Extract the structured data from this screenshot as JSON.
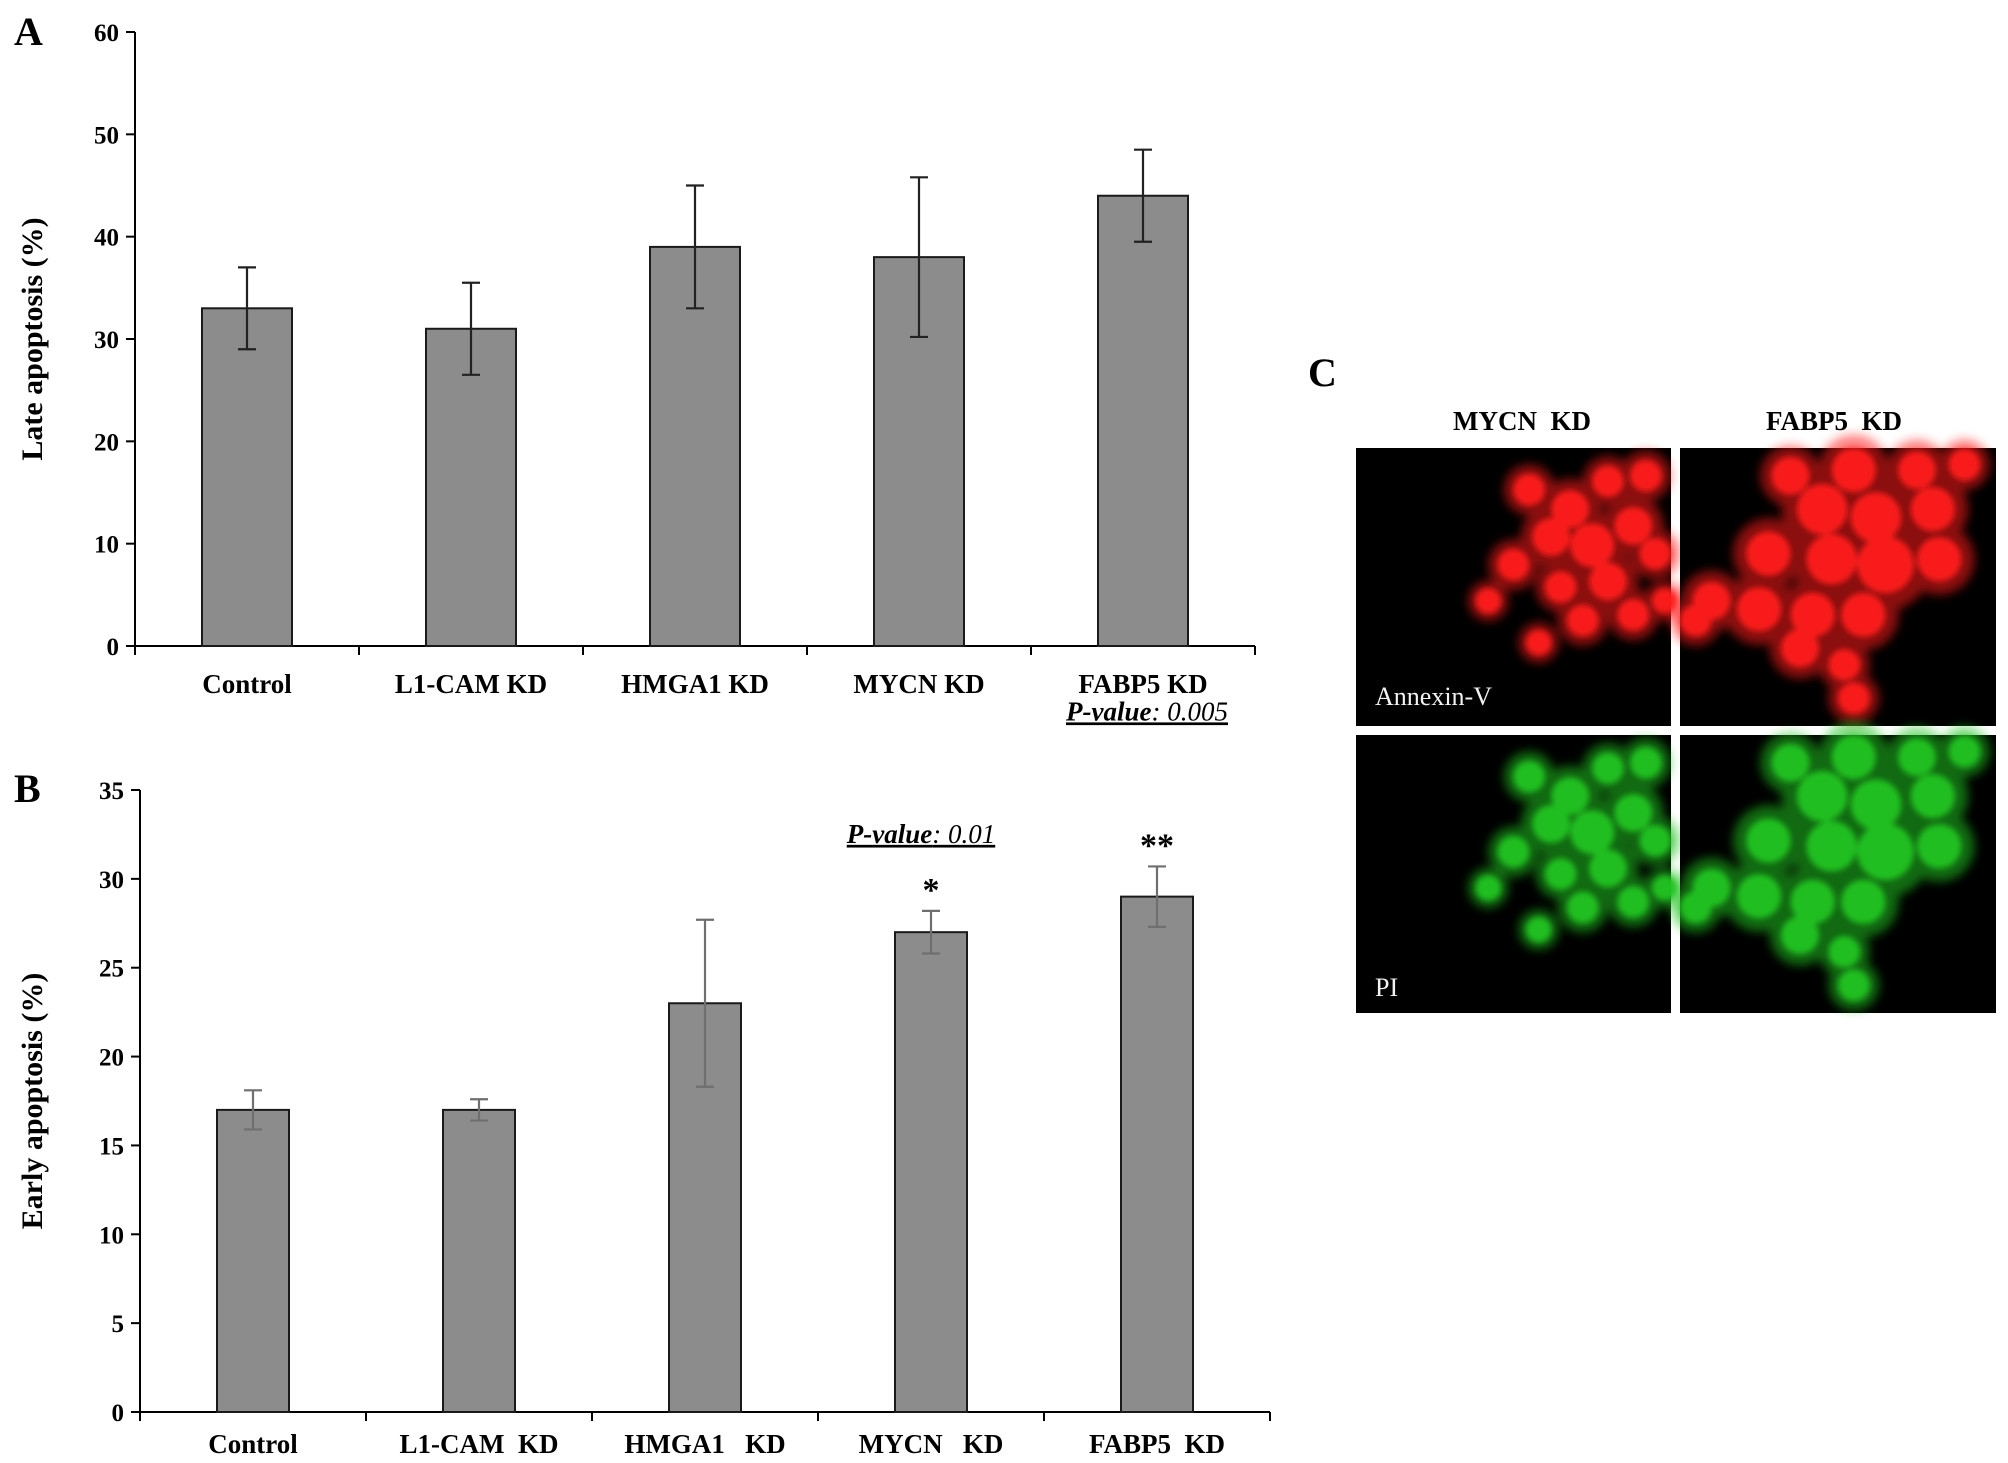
{
  "chart_data": [
    {
      "panel": "A",
      "type": "bar",
      "categories": [
        "Control",
        "L1-CAM KD",
        "HMGA1 KD",
        "MYCN KD",
        "FABP5 KD"
      ],
      "values": [
        33,
        31,
        39,
        38,
        44
      ],
      "errors": [
        4,
        4.5,
        6,
        7.8,
        4.5
      ],
      "ylabel": "Late apoptosis (%)",
      "ylim": [
        0,
        60
      ],
      "yticks": [
        0,
        10,
        20,
        30,
        40,
        50,
        60
      ],
      "bar_color": "#8c8c8c",
      "error_color": "#222222",
      "grid": false,
      "annotations": []
    },
    {
      "panel": "B",
      "type": "bar",
      "categories": [
        "Control",
        "L1-CAM  KD",
        "HMGA1   KD",
        "MYCN   KD",
        "FABP5  KD"
      ],
      "values": [
        17,
        17,
        23,
        27,
        29
      ],
      "errors": [
        1.1,
        0.6,
        4.7,
        1.2,
        1.7
      ],
      "ylabel": "Early apoptosis (%)",
      "ylim": [
        0,
        35
      ],
      "yticks": [
        0,
        5,
        10,
        15,
        20,
        25,
        30,
        35
      ],
      "bar_color": "#8c8c8c",
      "error_color": "#6f6f6f",
      "grid": false,
      "annotations": [
        {
          "category_index": 3,
          "stars": "*",
          "p_label": "P-value",
          "p_value": ": 0.01"
        },
        {
          "category_index": 4,
          "stars": "**",
          "p_label": "P-value",
          "p_value": ": 0.005"
        }
      ]
    }
  ],
  "panel_c": {
    "letter": "C",
    "columns": [
      "MYCN  KD",
      "FABP5  KD"
    ],
    "rows": [
      "Annexin-V",
      "PI"
    ],
    "stain_colors": {
      "annexin": "#ff1a1a",
      "pi": "#22c322"
    }
  }
}
